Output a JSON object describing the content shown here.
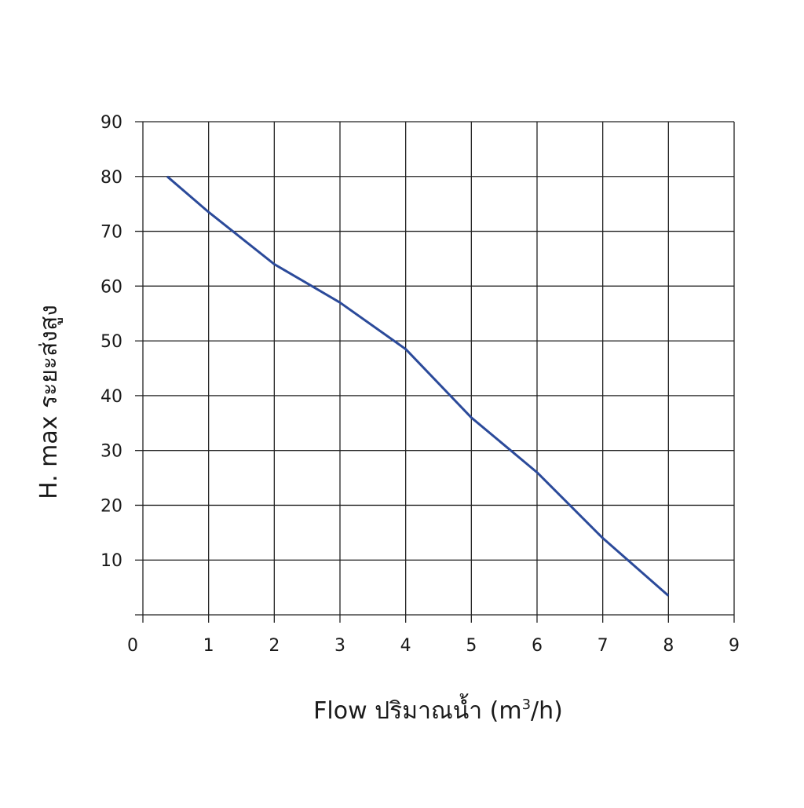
{
  "chart_data": {
    "type": "line",
    "xlabel": "Flow  ปริมาณน้ำ (m",
    "xlabel_sup": "3",
    "xlabel_tail": "/h)",
    "ylabel": "H. max  ระยะส่งสูง",
    "xlim": [
      0,
      9
    ],
    "ylim": [
      0,
      90
    ],
    "x_ticks": [
      "0",
      "1",
      "2",
      "3",
      "4",
      "5",
      "6",
      "7",
      "8",
      "9"
    ],
    "y_ticks": [
      "10",
      "20",
      "30",
      "40",
      "50",
      "60",
      "70",
      "80",
      "90"
    ],
    "grid": true,
    "line_color": "#2b4a9a",
    "series": [
      {
        "x": [
          0.37,
          1.0,
          2.0,
          3.0,
          4.0,
          5.0,
          6.0,
          7.0,
          8.0
        ],
        "y": [
          80,
          73.5,
          64,
          57,
          48.5,
          36,
          26,
          14,
          3.5
        ]
      }
    ]
  }
}
